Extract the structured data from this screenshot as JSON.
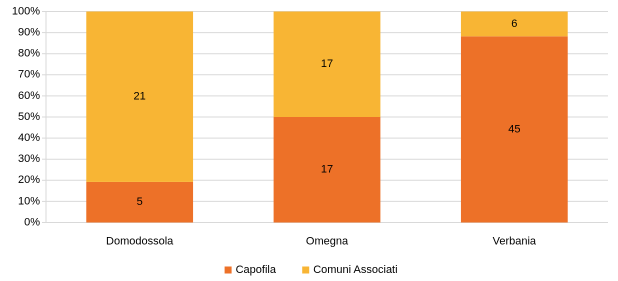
{
  "chart_data": {
    "type": "bar",
    "stacking": "percent",
    "categories": [
      "Domodossola",
      "Omegna",
      "Verbania"
    ],
    "series": [
      {
        "name": "Capofila",
        "color": "#ed7128",
        "values": [
          5,
          17,
          45
        ]
      },
      {
        "name": "Comuni Associati",
        "color": "#f8b534",
        "values": [
          21,
          17,
          6
        ]
      }
    ],
    "ylim": [
      0,
      100
    ],
    "yticks": [
      {
        "value": 0,
        "label": "0%"
      },
      {
        "value": 10,
        "label": "10%"
      },
      {
        "value": 20,
        "label": "20%"
      },
      {
        "value": 30,
        "label": "30%"
      },
      {
        "value": 40,
        "label": "40%"
      },
      {
        "value": 50,
        "label": "50%"
      },
      {
        "value": 60,
        "label": "60%"
      },
      {
        "value": 70,
        "label": "70%"
      },
      {
        "value": 80,
        "label": "80%"
      },
      {
        "value": 90,
        "label": "90%"
      },
      {
        "value": 100,
        "label": "100%"
      }
    ],
    "grid": true,
    "legend": "bottom"
  }
}
